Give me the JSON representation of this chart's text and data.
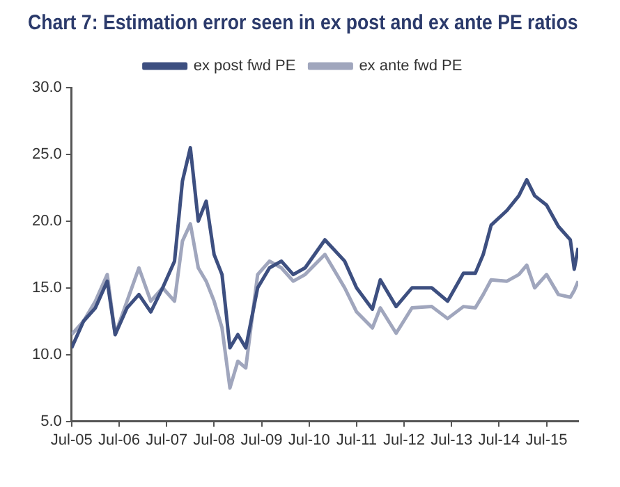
{
  "chart_data": {
    "type": "line",
    "title": "Chart 7: Estimation error seen in ex post and ex ante PE ratios",
    "x": [
      "2005-07",
      "2005-10",
      "2006-01",
      "2006-04",
      "2006-06",
      "2006-09",
      "2006-12",
      "2007-03",
      "2007-06",
      "2007-09",
      "2007-11",
      "2008-01",
      "2008-03",
      "2008-05",
      "2008-07",
      "2008-09",
      "2008-11",
      "2009-01",
      "2009-03",
      "2009-06",
      "2009-09",
      "2009-12",
      "2010-03",
      "2010-06",
      "2010-11",
      "2011-04",
      "2011-07",
      "2011-11",
      "2012-01",
      "2012-05",
      "2012-09",
      "2013-02",
      "2013-06",
      "2013-10",
      "2014-01",
      "2014-03",
      "2014-05",
      "2014-09",
      "2014-12",
      "2015-02",
      "2015-04",
      "2015-07",
      "2015-10",
      "2016-01",
      "2016-02",
      "2016-03"
    ],
    "series": [
      {
        "name": "ex post fwd PE",
        "color": "#3d4f80",
        "values": [
          10.5,
          12.5,
          13.5,
          15.5,
          11.5,
          13.5,
          14.5,
          13.2,
          15,
          17,
          23,
          25.5,
          20,
          21.5,
          17.5,
          16,
          10.5,
          11.5,
          10.5,
          15,
          16.5,
          17,
          16,
          16.5,
          18.6,
          17,
          15,
          13.4,
          15.6,
          13.6,
          15,
          15,
          14,
          16.1,
          16.1,
          17.5,
          19.7,
          20.8,
          21.9,
          23.1,
          21.9,
          21.2,
          19.6,
          18.6,
          16.4,
          18
        ]
      },
      {
        "name": "ex ante fwd PE",
        "color": "#a0a6bd",
        "values": [
          11.5,
          12.5,
          14,
          16,
          11.5,
          14,
          16.5,
          14,
          15,
          14,
          18.5,
          19.8,
          16.5,
          15.5,
          14,
          12,
          7.5,
          9.5,
          9,
          16,
          17,
          16.5,
          15.5,
          16,
          17.5,
          15,
          13.2,
          12,
          13.5,
          11.6,
          13.5,
          13.6,
          12.7,
          13.6,
          13.5,
          14.5,
          15.6,
          15.5,
          16,
          16.7,
          15,
          16,
          14.5,
          14.3,
          14.8,
          15.5
        ]
      }
    ],
    "xlim": [
      "2005-07",
      "2016-03"
    ],
    "xticks": [
      {
        "value": "2005-07",
        "label": "Jul-05"
      },
      {
        "value": "2006-07",
        "label": "Jul-06"
      },
      {
        "value": "2007-07",
        "label": "Jul-07"
      },
      {
        "value": "2008-07",
        "label": "Jul-08"
      },
      {
        "value": "2009-07",
        "label": "Jul-09"
      },
      {
        "value": "2010-07",
        "label": "Jul-10"
      },
      {
        "value": "2011-07",
        "label": "Jul-11"
      },
      {
        "value": "2012-07",
        "label": "Jul-12"
      },
      {
        "value": "2013-07",
        "label": "Jul-13"
      },
      {
        "value": "2014-07",
        "label": "Jul-14"
      },
      {
        "value": "2015-07",
        "label": "Jul-15"
      }
    ],
    "ylim": [
      5,
      30
    ],
    "yticks": [
      {
        "value": 5,
        "label": "5.0"
      },
      {
        "value": 10,
        "label": "10.0"
      },
      {
        "value": 15,
        "label": "15.0"
      },
      {
        "value": 20,
        "label": "20.0"
      },
      {
        "value": 25,
        "label": "25.0"
      },
      {
        "value": 30,
        "label": "30.0"
      }
    ],
    "grid": false,
    "legend": "top",
    "marker": "none",
    "line_style": "solid"
  }
}
